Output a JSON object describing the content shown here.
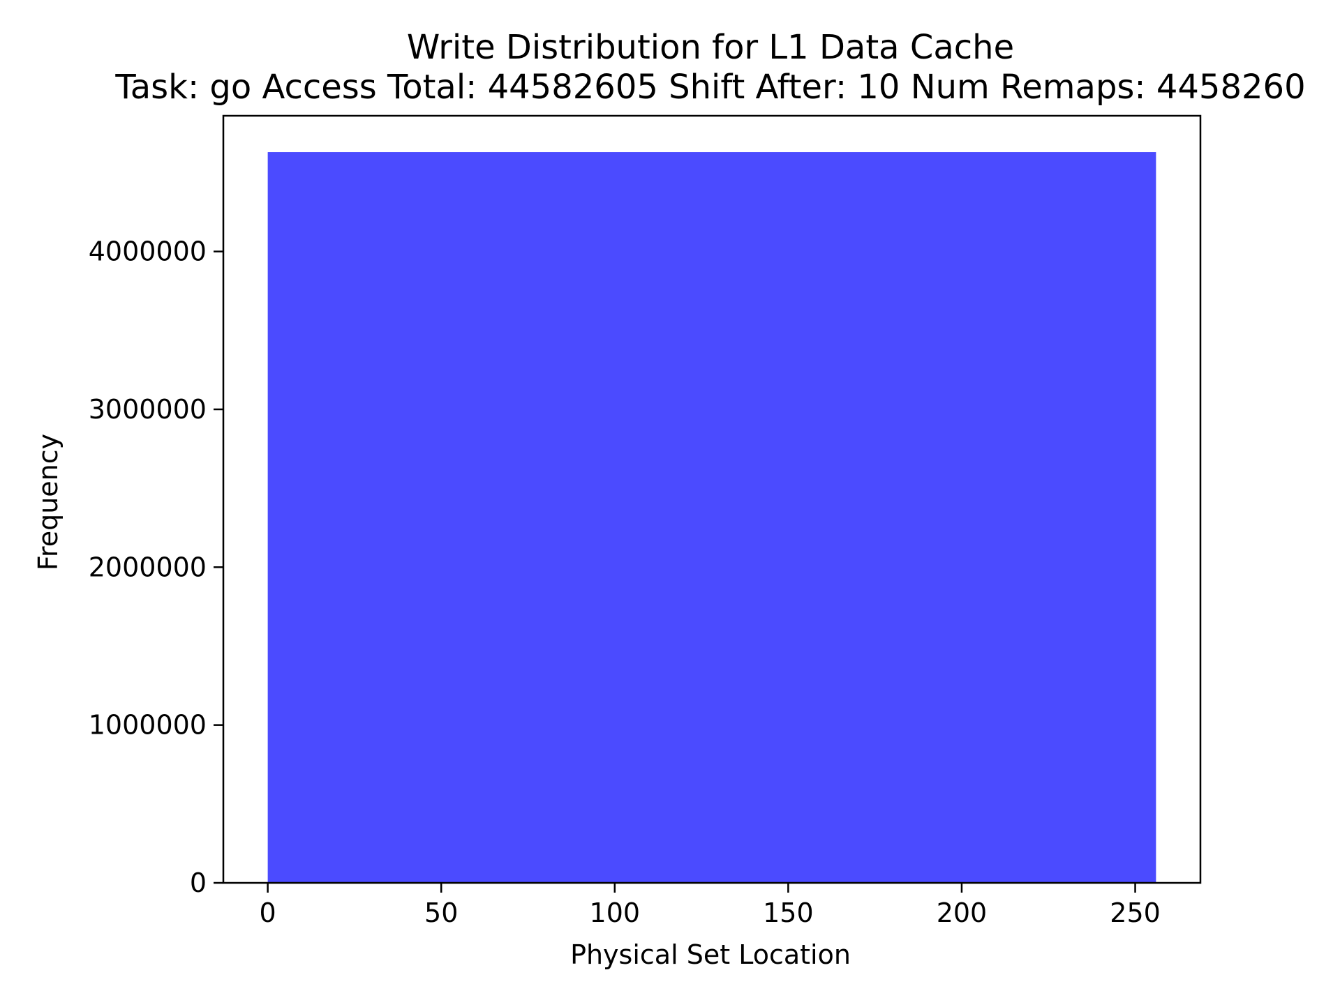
{
  "chart_data": {
    "type": "bar",
    "title": "Write Distribution for L1 Data Cache",
    "subtitle": "Task: go Access Total: 44582605 Shift After: 10 Num Remaps: 4458260",
    "xlabel": "Physical Set Location",
    "ylabel": "Frequency",
    "xlim": [
      -12.8,
      268.8
    ],
    "ylim": [
      0,
      4860000
    ],
    "x_ticks": [
      0,
      50,
      100,
      150,
      200,
      250
    ],
    "y_ticks": [
      0,
      1000000,
      2000000,
      3000000,
      4000000
    ],
    "bars": [
      {
        "x_start": 0,
        "x_end": 256,
        "value": 4630000
      }
    ],
    "bar_color": "#4b4bff",
    "grid": false,
    "legend": "none"
  }
}
